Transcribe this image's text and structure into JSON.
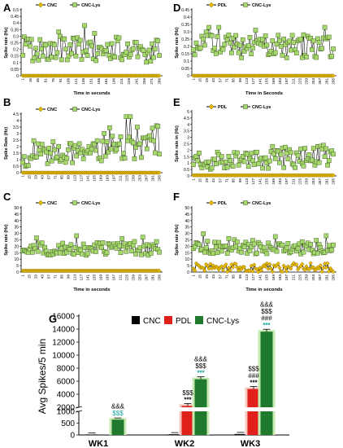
{
  "chart_data": [
    {
      "panel": "A",
      "type": "line",
      "legend": [
        "CNC",
        "CNC-Lys"
      ],
      "legend_placement": "top",
      "ylabel": "Spike rate (Hz)",
      "xlabel": "Time in seconds",
      "yticks": [
        "0",
        "0.05",
        "0.1",
        "0.15",
        "0.2",
        "0.25",
        "0.3",
        "0.35",
        "0.4",
        "0.45",
        "0.5"
      ],
      "ylim": [
        0,
        0.5
      ],
      "xticks": [
        "1",
        "16",
        "46",
        "61",
        "76",
        "91",
        "106",
        "121",
        "136",
        "151",
        "166",
        "181",
        "196",
        "211",
        "226",
        "241",
        "256",
        "271",
        "286"
      ],
      "series": [
        {
          "name": "CNC",
          "values": [
            0.0,
            0.0,
            0.0,
            0.0,
            0.0,
            0.0,
            0.0,
            0.0,
            0.0,
            0.0
          ],
          "base": 0.0
        },
        {
          "name": "CNC-Lys",
          "mean": 0.2,
          "spread": 0.1,
          "range": [
            0.05,
            0.38
          ]
        }
      ]
    },
    {
      "panel": "B",
      "type": "line",
      "legend": [
        "CNC",
        "CNC-Lys"
      ],
      "legend_placement": "top",
      "ylabel": "Spike Rate (Hz)",
      "xlabel": "",
      "yticks": [
        "0",
        "0.5",
        "1",
        "1.5",
        "2",
        "2.5",
        "3",
        "3.5",
        "4",
        "4.5"
      ],
      "ylim": [
        0,
        4.5
      ],
      "xticks": [
        "1",
        "15",
        "29",
        "43",
        "57",
        "71",
        "85",
        "99",
        "113",
        "127",
        "141",
        "155",
        "169",
        "183",
        "197",
        "211",
        "225",
        "239",
        "253",
        "267",
        "281",
        "295"
      ],
      "series": [
        {
          "name": "CNC",
          "base": 0.0
        },
        {
          "name": "CNC-Lys",
          "start_mean": 1.0,
          "end_mean": 2.6,
          "range": [
            0.3,
            4.3
          ]
        }
      ]
    },
    {
      "panel": "C",
      "type": "line",
      "legend": [
        "CNC",
        "CNC-Lys"
      ],
      "legend_placement": "top",
      "ylabel": "Spike rate (Hz)",
      "xlabel": "Time in seconds",
      "yticks": [
        "0",
        "5",
        "10",
        "15",
        "20",
        "25",
        "30",
        "35",
        "40",
        "45",
        "50"
      ],
      "ylim": [
        0,
        50
      ],
      "xticks": [
        "1",
        "15",
        "29",
        "43",
        "57",
        "71",
        "85",
        "99",
        "113",
        "127",
        "141",
        "155",
        "169",
        "183",
        "197",
        "211",
        "225",
        "239",
        "253",
        "267",
        "281",
        "295"
      ],
      "series": [
        {
          "name": "CNC",
          "base": 1.0
        },
        {
          "name": "CNC-Lys",
          "mean": 18,
          "spread": 5,
          "range": [
            8,
            36
          ]
        }
      ]
    },
    {
      "panel": "D",
      "type": "line",
      "legend": [
        "PDL",
        "CNC-Lys"
      ],
      "legend_placement": "top",
      "ylabel": "Spike rate (Hz)",
      "xlabel": "Time in Seconds",
      "yticks": [
        "0",
        "0.05",
        "0.1",
        "0.15",
        "0.2",
        "0.25",
        "0.3",
        "0.35",
        "0.4",
        "0.45"
      ],
      "ylim": [
        0,
        0.45
      ],
      "xticks": [
        "1",
        "15",
        "29",
        "43",
        "57",
        "71",
        "85",
        "99",
        "113",
        "127",
        "141",
        "155",
        "169",
        "183",
        "197",
        "211",
        "225",
        "239",
        "253",
        "267",
        "281",
        "295"
      ],
      "series": [
        {
          "name": "PDL",
          "base": 0.0
        },
        {
          "name": "CNC-Lys",
          "mean": 0.2,
          "spread": 0.08,
          "range": [
            0.05,
            0.33
          ]
        }
      ]
    },
    {
      "panel": "E",
      "type": "line",
      "legend": [
        "PDL",
        "CNC-Lys"
      ],
      "legend_placement": "top",
      "ylabel": "Spike rate in (Hz)",
      "xlabel": "",
      "yticks": [
        "0",
        "0.5",
        "1",
        "1.5",
        "2",
        "2.5",
        "3",
        "3.5",
        "4",
        "4.5",
        "5"
      ],
      "ylim": [
        0,
        5
      ],
      "xticks": [
        "1",
        "15",
        "29",
        "43",
        "57",
        "71",
        "85",
        "99",
        "113",
        "127",
        "141",
        "155",
        "169",
        "183",
        "197",
        "211",
        "225",
        "239",
        "253",
        "267",
        "281",
        "295"
      ],
      "series": [
        {
          "name": "PDL",
          "base": 0.05
        },
        {
          "name": "CNC-Lys",
          "start_mean": 1.0,
          "end_mean": 1.6,
          "range": [
            0.5,
            2.6
          ]
        }
      ]
    },
    {
      "panel": "F",
      "type": "line",
      "legend": [
        "PDL",
        "CNC-Lys"
      ],
      "legend_placement": "top",
      "ylabel": "Spike rate (Hz)",
      "xlabel": "Time in seconds",
      "yticks": [
        "0",
        "5",
        "10",
        "15",
        "20",
        "25",
        "30",
        "35",
        "40",
        "45",
        "50"
      ],
      "ylim": [
        0,
        50
      ],
      "xticks": [
        "1",
        "15",
        "29",
        "43",
        "57",
        "71",
        "85",
        "99",
        "113",
        "127",
        "141",
        "155",
        "169",
        "183",
        "197",
        "211",
        "225",
        "239",
        "253",
        "267",
        "281",
        "295"
      ],
      "series": [
        {
          "name": "PDL",
          "base": 3.0,
          "range": [
            0,
            7
          ]
        },
        {
          "name": "CNC-Lys",
          "mean": 19,
          "spread": 5,
          "range": [
            10,
            35
          ]
        }
      ]
    },
    {
      "panel": "G",
      "type": "bar",
      "legend": [
        "CNC",
        "PDL",
        "CNC-Lys"
      ],
      "legend_placement": "top",
      "ylabel": "Avg Spikes/5 min",
      "categories": [
        "WK1",
        "WK2",
        "WK3"
      ],
      "yticks_upper": [
        "2000",
        "4000",
        "6000",
        "8000",
        "10000",
        "12000",
        "14000",
        "16000"
      ],
      "yticks_lower": [
        "0",
        "500",
        "1000"
      ],
      "axis_break": [
        1000,
        2000
      ],
      "ylim": [
        0,
        16000
      ],
      "series": [
        {
          "name": "CNC",
          "color": "#000000",
          "values": [
            20,
            30,
            40
          ]
        },
        {
          "name": "PDL",
          "color": "#e0201a",
          "values": [
            0,
            2200,
            4800
          ]
        },
        {
          "name": "CNC-Lys",
          "color": "#1f7a2e",
          "values": [
            650,
            6300,
            13600
          ]
        }
      ],
      "annotations": [
        {
          "category": "WK1",
          "bar": "CNC-Lys",
          "lines": [
            "&&&",
            "$$$"
          ]
        },
        {
          "category": "WK2",
          "bar": "PDL",
          "lines": [
            "$$$",
            "***"
          ]
        },
        {
          "category": "WK2",
          "bar": "CNC-Lys",
          "lines": [
            "&&&",
            "$$$",
            "***"
          ]
        },
        {
          "category": "WK3",
          "bar": "PDL",
          "lines": [
            "$$$",
            "###",
            "***"
          ]
        },
        {
          "category": "WK3",
          "bar": "CNC-Lys",
          "lines": [
            "&&&",
            "$$$",
            "###",
            "***"
          ]
        }
      ]
    }
  ],
  "colors": {
    "cnc_line": "#000000",
    "cnc_marker": "#e6b800",
    "lys_marker": "#a6d86e",
    "lys_marker_edge": "#3d5a1d",
    "pdl_marker": "#e6b800",
    "bar_cnc": "#000000",
    "bar_pdl": "#e0201a",
    "bar_lys": "#1f7a2e"
  }
}
